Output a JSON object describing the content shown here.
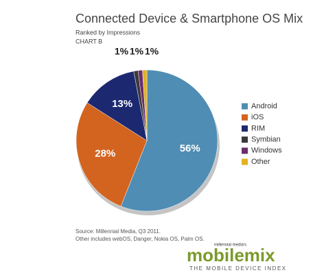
{
  "chart_data": {
    "type": "pie",
    "title": "Connected Device & Smartphone OS Mix",
    "subtitle": "Ranked by Impressions",
    "chart_label": "CHART B",
    "categories": [
      "Android",
      "iOS",
      "RIM",
      "Symbian",
      "Windows",
      "Other"
    ],
    "values": [
      56,
      28,
      13,
      1,
      1,
      1
    ],
    "value_labels": [
      "56%",
      "28%",
      "13%",
      "1%",
      "1%",
      "1%"
    ],
    "colors": [
      "#4f8db4",
      "#d2641f",
      "#1c2870",
      "#3a3a3a",
      "#6c2c6e",
      "#e2b21f"
    ],
    "legend": "right",
    "source": "Source: Millennial Media, Q3 2011.",
    "note": "Other includes webOS, Danger, Nokia OS, Palm OS.",
    "logo": {
      "byline": "millennial media's",
      "name": "mobilemix",
      "tagline": "THE MOBILE DEVICE INDEX"
    }
  }
}
